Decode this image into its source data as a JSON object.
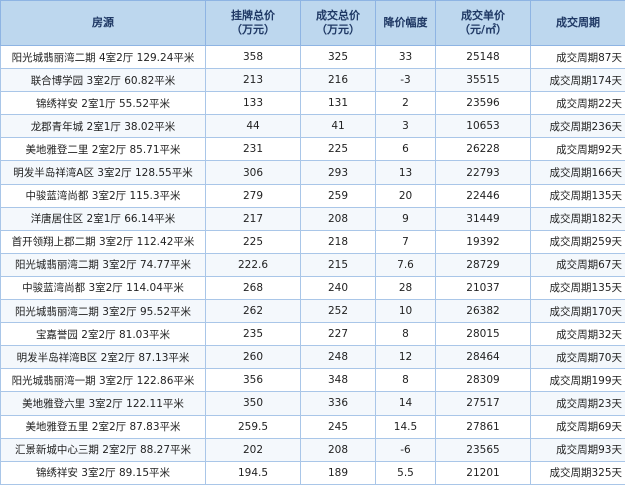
{
  "table": {
    "header": [
      [
        "房源"
      ],
      [
        "挂牌总价",
        "（万元）"
      ],
      [
        "成交总价",
        "（万元）"
      ],
      [
        "降价幅度"
      ],
      [
        "成交单价",
        "（元/㎡）"
      ],
      [
        "成交周期"
      ]
    ],
    "rows": [
      [
        "阳光城翡丽湾二期 4室2厅 129.24平米",
        358,
        325,
        33,
        25148,
        "成交周期87天"
      ],
      [
        "联合博学园 3室2厅 60.82平米",
        213,
        216,
        -3,
        35515,
        "成交周期174天"
      ],
      [
        "锦绣祥安 2室1厅 55.52平米",
        133,
        131,
        2,
        23596,
        "成交周期22天"
      ],
      [
        "龙郡青年城 2室1厅 38.02平米",
        44,
        41,
        3,
        10653,
        "成交周期236天"
      ],
      [
        "美地雅登二里 2室2厅 85.71平米",
        231,
        225,
        6,
        26228,
        "成交周期92天"
      ],
      [
        "明发半岛祥湾A区 3室2厅 128.55平米",
        306,
        293,
        13,
        22793,
        "成交周期166天"
      ],
      [
        "中骏蓝湾尚都 3室2厅 115.3平米",
        279,
        259,
        20,
        22446,
        "成交周期135天"
      ],
      [
        "洋唐居住区 2室1厅 66.14平米",
        217,
        208,
        9,
        31449,
        "成交周期182天"
      ],
      [
        "首开领翔上郡二期 3室2厅 112.42平米",
        225,
        218,
        7,
        19392,
        "成交周期259天"
      ],
      [
        "阳光城翡丽湾二期 3室2厅 74.77平米",
        222.6,
        215,
        7.6,
        28729,
        "成交周期67天"
      ],
      [
        "中骏蓝湾尚都 3室2厅 114.04平米",
        268,
        240,
        28,
        21037,
        "成交周期135天"
      ],
      [
        "阳光城翡丽湾二期 3室2厅 95.52平米",
        262,
        252,
        10,
        26382,
        "成交周期170天"
      ],
      [
        "宝嘉誉园 2室2厅 81.03平米",
        235,
        227,
        8,
        28015,
        "成交周期32天"
      ],
      [
        "明发半岛祥湾B区 2室2厅 87.13平米",
        260,
        248,
        12,
        28464,
        "成交周期70天"
      ],
      [
        "阳光城翡丽湾一期 3室2厅 122.86平米",
        356,
        348,
        8,
        28309,
        "成交周期199天"
      ],
      [
        "美地雅登六里 3室2厅 122.11平米",
        350,
        336,
        14,
        27517,
        "成交周期23天"
      ],
      [
        "美地雅登五里 2室2厅 87.83平米",
        259.5,
        245,
        14.5,
        27861,
        "成交周期69天"
      ],
      [
        "汇景新城中心三期 2室2厅 88.27平米",
        202,
        208,
        -6,
        23565,
        "成交周期93天"
      ],
      [
        "锦绣祥安 3室2厅 89.15平米",
        194.5,
        189,
        5.5,
        21201,
        "成交周期325天"
      ]
    ]
  }
}
